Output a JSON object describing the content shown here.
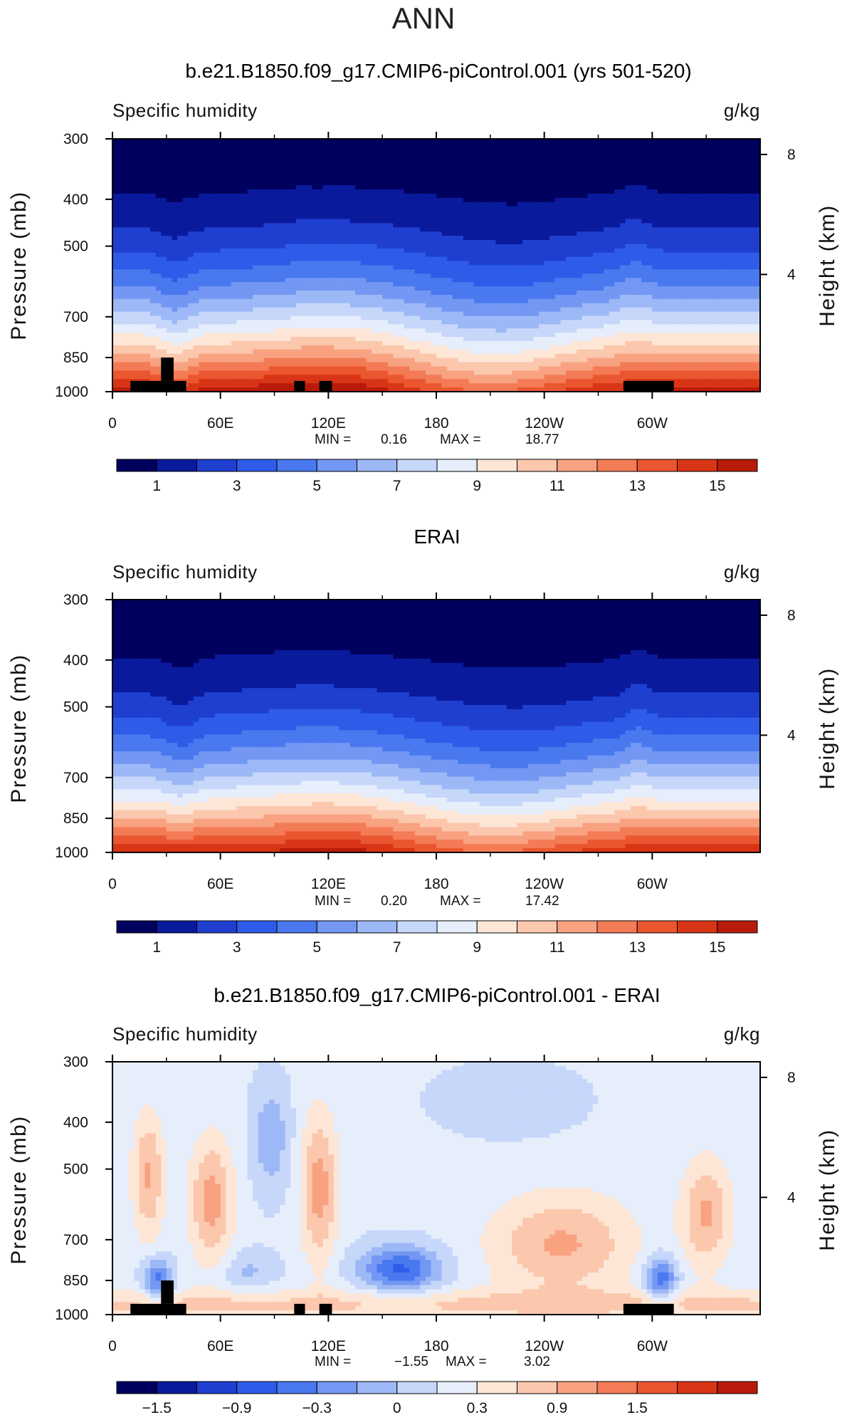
{
  "super_title": "ANN",
  "colors": {
    "abs_palette": [
      "#00005f",
      "#0a1a9c",
      "#1f3fcf",
      "#2e5ce8",
      "#4a78ef",
      "#7397f3",
      "#9db8f6",
      "#c6d7fa",
      "#e6eefc",
      "#fde6d6",
      "#fbc7ad",
      "#f8a281",
      "#f37b55",
      "#ea5630",
      "#d83516",
      "#b81b0a",
      "#8a0606"
    ],
    "diff_palette": [
      "#00005f",
      "#0a1a9c",
      "#1f3fcf",
      "#2e5ce8",
      "#4a78ef",
      "#7397f3",
      "#9db8f6",
      "#c6d7fa",
      "#e6eefc",
      "#fde6d6",
      "#fbc7ad",
      "#f8a281",
      "#f37b55",
      "#ea5630",
      "#d83516",
      "#b81b0a",
      "#8a0606"
    ],
    "mask": "#000000"
  },
  "chart_data": [
    {
      "type": "heatmap",
      "id": "model",
      "title": "b.e21.B1850.f09_g17.CMIP6-piControl.001 (yrs 501-520)",
      "left_string": "Specific humidity",
      "right_string": "g/kg",
      "ylabel": "Pressure (mb)",
      "ylabel_right": "Height (km)",
      "x_ticks": [
        "0",
        "60E",
        "120E",
        "180",
        "120W",
        "60W"
      ],
      "x_tick_values": [
        0,
        60,
        120,
        180,
        240,
        300
      ],
      "xlim": [
        0,
        360
      ],
      "y_ticks": [
        "300",
        "400",
        "500",
        "700",
        "850",
        "1000"
      ],
      "y_tick_values": [
        300,
        400,
        500,
        700,
        850,
        1000
      ],
      "ylim": [
        300,
        1000
      ],
      "y_scale": "log",
      "y_right_ticks": [
        "8",
        "4"
      ],
      "y_right_tick_values": [
        8,
        4
      ],
      "min_label": "MIN =",
      "min_value": "0.16",
      "max_label": "MAX =",
      "max_value": "18.77",
      "colorbar_labels": [
        "1",
        "3",
        "5",
        "7",
        "9",
        "11",
        "13",
        "15"
      ],
      "colorbar_levels": [
        0,
        1,
        2,
        3,
        4,
        5,
        6,
        7,
        8,
        9,
        10,
        11,
        12,
        13,
        14,
        15,
        16,
        17
      ]
    },
    {
      "type": "heatmap",
      "id": "obs",
      "title": "ERAI",
      "left_string": "Specific humidity",
      "right_string": "g/kg",
      "ylabel": "Pressure (mb)",
      "ylabel_right": "Height (km)",
      "x_ticks": [
        "0",
        "60E",
        "120E",
        "180",
        "120W",
        "60W"
      ],
      "x_tick_values": [
        0,
        60,
        120,
        180,
        240,
        300
      ],
      "xlim": [
        0,
        360
      ],
      "y_ticks": [
        "300",
        "400",
        "500",
        "700",
        "850",
        "1000"
      ],
      "y_tick_values": [
        300,
        400,
        500,
        700,
        850,
        1000
      ],
      "ylim": [
        300,
        1000
      ],
      "y_scale": "log",
      "y_right_ticks": [
        "8",
        "4"
      ],
      "y_right_tick_values": [
        8,
        4
      ],
      "min_label": "MIN =",
      "min_value": "0.20",
      "max_label": "MAX =",
      "max_value": "17.42",
      "colorbar_labels": [
        "1",
        "3",
        "5",
        "7",
        "9",
        "11",
        "13",
        "15"
      ],
      "colorbar_levels": [
        0,
        1,
        2,
        3,
        4,
        5,
        6,
        7,
        8,
        9,
        10,
        11,
        12,
        13,
        14,
        15,
        16,
        17
      ]
    },
    {
      "type": "heatmap",
      "id": "diff",
      "title": "b.e21.B1850.f09_g17.CMIP6-piControl.001 - ERAI",
      "left_string": "Specific humidity",
      "right_string": "g/kg",
      "ylabel": "Pressure (mb)",
      "ylabel_right": "Height (km)",
      "x_ticks": [
        "0",
        "60E",
        "120E",
        "180",
        "120W",
        "60W"
      ],
      "x_tick_values": [
        0,
        60,
        120,
        180,
        240,
        300
      ],
      "xlim": [
        0,
        360
      ],
      "y_ticks": [
        "300",
        "400",
        "500",
        "700",
        "850",
        "1000"
      ],
      "y_tick_values": [
        300,
        400,
        500,
        700,
        850,
        1000
      ],
      "ylim": [
        300,
        1000
      ],
      "y_scale": "log",
      "y_right_ticks": [
        "8",
        "4"
      ],
      "y_right_tick_values": [
        8,
        4
      ],
      "min_label": "MIN =",
      "min_value": "−1.55",
      "max_label": "MAX =",
      "max_value": "3.02",
      "colorbar_labels": [
        "−1.5",
        "−0.9",
        "−0.3",
        "0",
        "0.3",
        "0.9",
        "1.5"
      ],
      "colorbar_levels": [
        -2.4,
        -2.1,
        -1.8,
        -1.5,
        -1.2,
        -0.9,
        -0.6,
        -0.3,
        0,
        0.3,
        0.6,
        0.9,
        1.2,
        1.5,
        1.8,
        2.1,
        2.4,
        2.7
      ]
    }
  ]
}
